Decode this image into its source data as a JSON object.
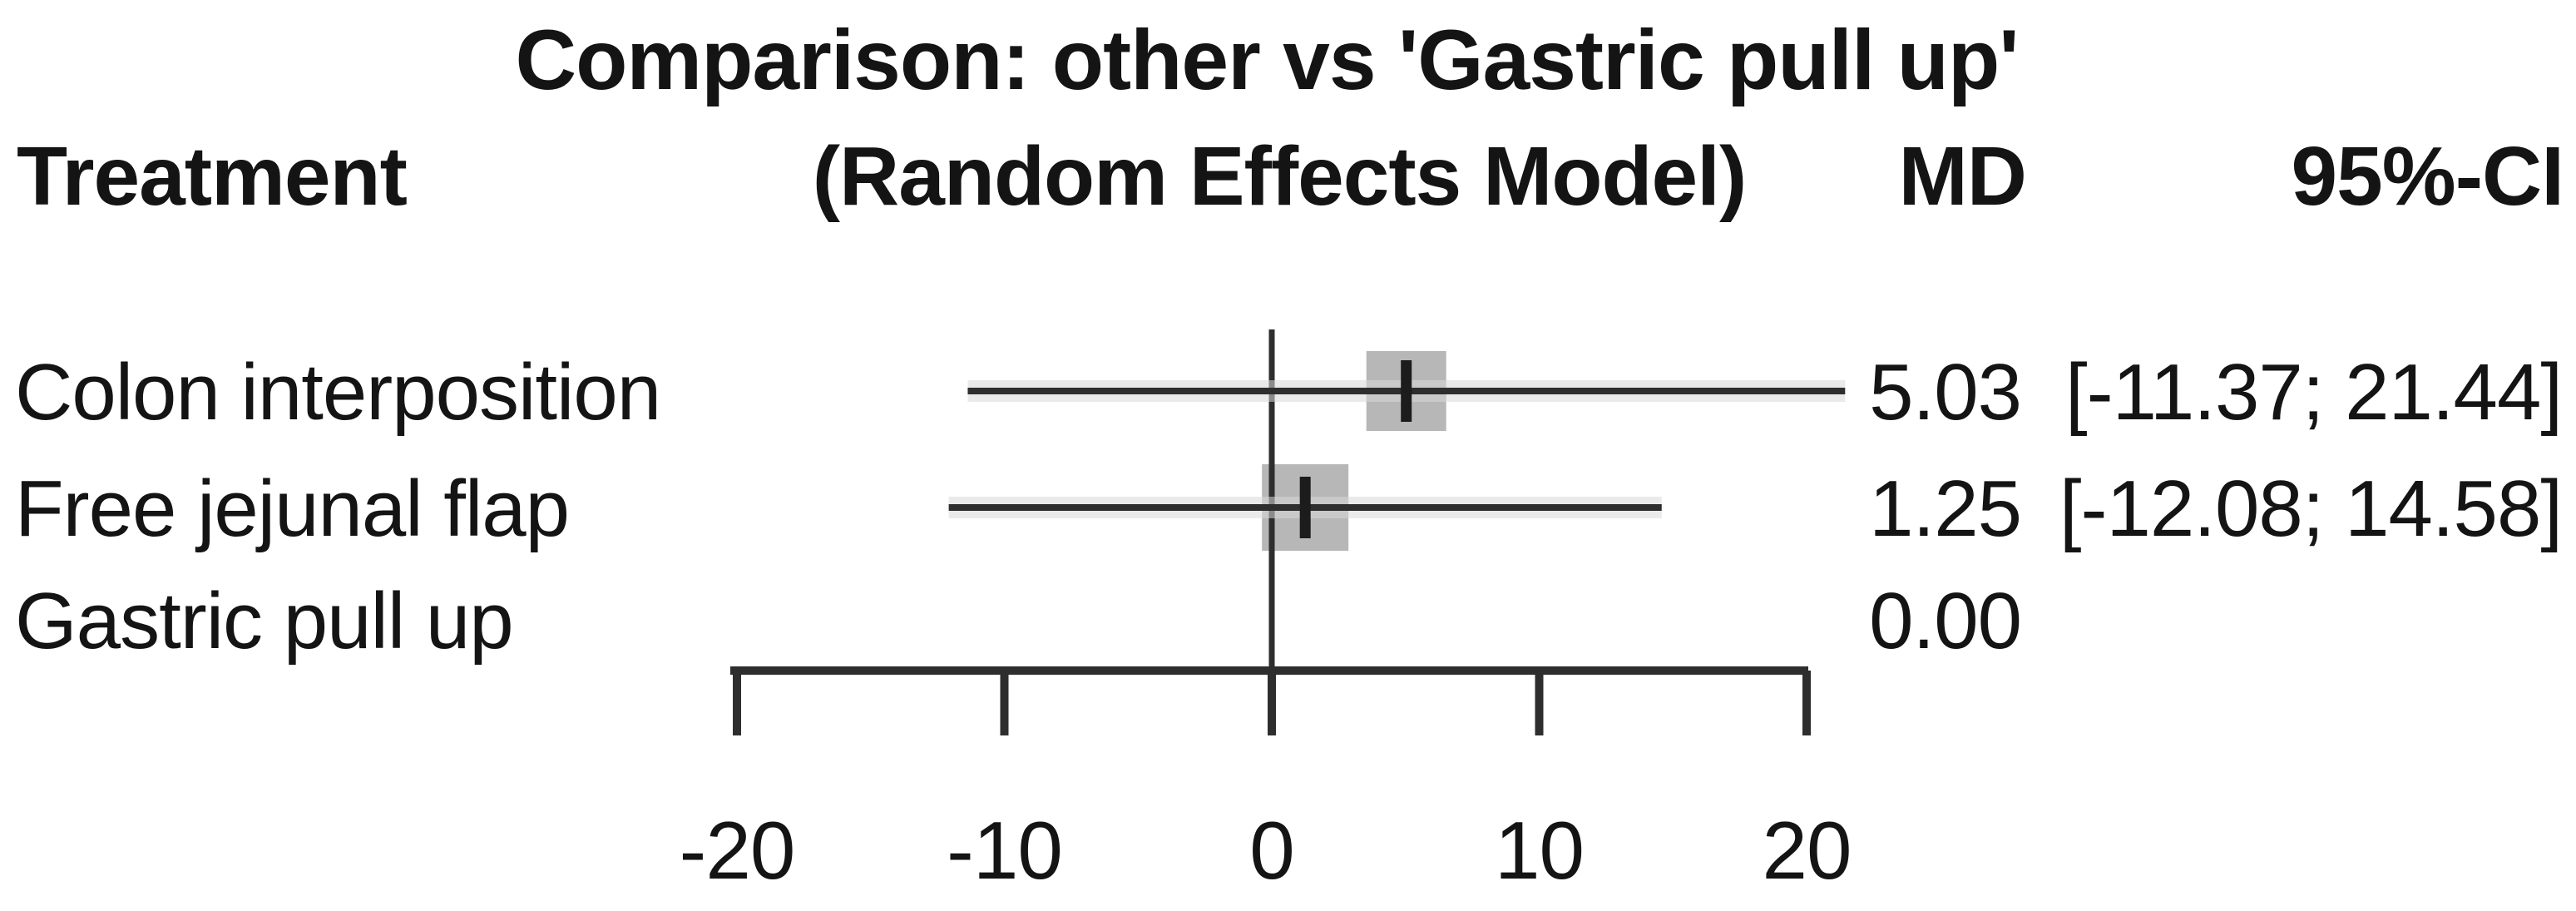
{
  "title": "Comparison: other vs 'Gastric pull up'",
  "subtitle": "(Random Effects Model)",
  "columns": {
    "treatment": "Treatment",
    "md": "MD",
    "ci": "95%-CI"
  },
  "chart_data": {
    "type": "forest",
    "comparison": "other vs 'Gastric pull up'",
    "model": "Random Effects Model",
    "effect_measure": "MD",
    "reference_treatment": "Gastric pull up",
    "reference_line": 0,
    "xlim": [
      -20,
      20
    ],
    "ticks": [
      -20,
      -10,
      0,
      10,
      20
    ],
    "tick_labels": [
      "-20",
      "-10",
      "0",
      "10",
      "20"
    ],
    "rows": [
      {
        "treatment": "Colon interposition",
        "md": 5.03,
        "ci_low": -11.37,
        "ci_high": 21.44,
        "md_label": "5.03",
        "ci_label": "[-11.37; 21.44]",
        "marker_size": 96
      },
      {
        "treatment": "Free jejunal flap",
        "md": 1.25,
        "ci_low": -12.08,
        "ci_high": 14.58,
        "md_label": "1.25",
        "ci_label": "[-12.08; 14.58]",
        "marker_size": 104
      },
      {
        "treatment": "Gastric pull up",
        "md": 0.0,
        "ci_low": null,
        "ci_high": null,
        "md_label": "0.00",
        "ci_label": "",
        "marker_size": 0
      }
    ]
  },
  "colors": {
    "text": "#141414",
    "line": "#2e2e2e",
    "line_halo": "#d9d9d9",
    "marker_fill": "#b7b7b7",
    "point_dash": "#1c1c1c"
  }
}
